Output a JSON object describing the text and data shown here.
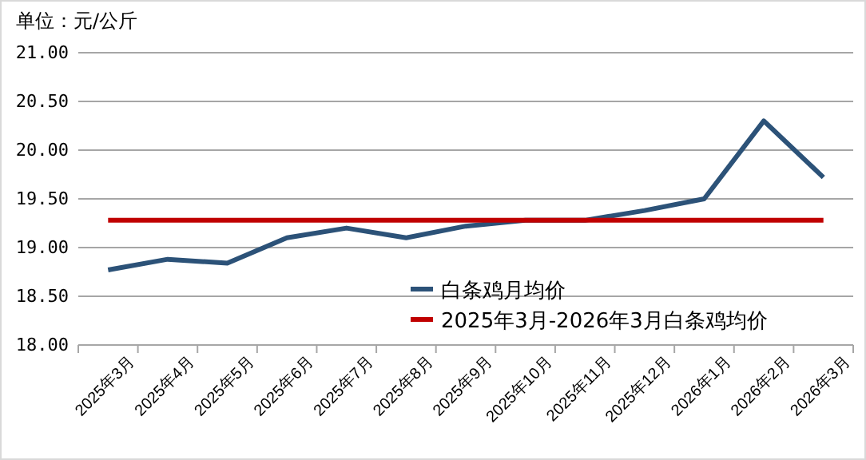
{
  "chart_data": {
    "type": "line",
    "ylabel": "单位：元/公斤",
    "categories": [
      "2025年3月",
      "2025年4月",
      "2025年5月",
      "2025年6月",
      "2025年7月",
      "2025年8月",
      "2025年9月",
      "2025年10月",
      "2025年11月",
      "2025年12月",
      "2026年1月",
      "2026年2月",
      "2026年3月"
    ],
    "series": [
      {
        "name": "白条鸡月均价",
        "color": "#2c5278",
        "values": [
          18.77,
          18.88,
          18.84,
          19.1,
          19.2,
          19.1,
          19.22,
          19.28,
          19.28,
          19.38,
          19.5,
          20.3,
          19.72
        ]
      },
      {
        "name": "2025年3月-2026年3月白条鸡均价",
        "color": "#c00000",
        "values": [
          19.28,
          19.28,
          19.28,
          19.28,
          19.28,
          19.28,
          19.28,
          19.28,
          19.28,
          19.28,
          19.28,
          19.28,
          19.28
        ]
      }
    ],
    "ylim": [
      18,
      21
    ],
    "yticks": [
      {
        "value": 18,
        "label": "18.00"
      },
      {
        "value": 18.5,
        "label": "18.50"
      },
      {
        "value": 19,
        "label": "19.00"
      },
      {
        "value": 19.5,
        "label": "19.50"
      },
      {
        "value": 20,
        "label": "20.00"
      },
      {
        "value": 20.5,
        "label": "20.50"
      },
      {
        "value": 21,
        "label": "21.00"
      }
    ],
    "grid": "y",
    "legend": "bottom right",
    "marker": "none",
    "line_style": "solid"
  }
}
